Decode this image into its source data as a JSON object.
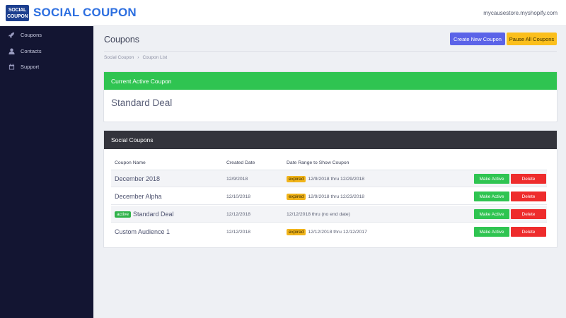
{
  "app": {
    "logo_line1": "SOCIAL",
    "logo_line2": "COUPON",
    "brand": "SOCIAL COUPON",
    "store": "mycausestore.myshopify.com"
  },
  "sidebar": {
    "items": [
      {
        "label": "Coupons",
        "icon": "rocket-icon"
      },
      {
        "label": "Contacts",
        "icon": "user-icon"
      },
      {
        "label": "Support",
        "icon": "calendar-icon"
      }
    ]
  },
  "page": {
    "title": "Coupons",
    "create_label": "Create New Coupon",
    "pause_label": "Pause All Coupons",
    "breadcrumb": [
      "Social Coupon",
      "Coupon List"
    ]
  },
  "active_card": {
    "header": "Current Active Coupon",
    "deal": "Standard Deal"
  },
  "list_card": {
    "header": "Social Coupons",
    "columns": [
      "Coupon Name",
      "Created Date",
      "Date Range to Show Coupon"
    ],
    "rows": [
      {
        "name": "December 2018",
        "badge": "",
        "created": "12/9/2018",
        "status": "expired",
        "range": "12/9/2018 thru 12/29/2018"
      },
      {
        "name": "December Alpha",
        "badge": "",
        "created": "12/10/2018",
        "status": "expired",
        "range": "12/9/2018 thru 12/23/2018"
      },
      {
        "name": "Standard Deal",
        "badge": "active",
        "created": "12/12/2018",
        "status": "",
        "range": "12/12/2018 thru (no end date)"
      },
      {
        "name": "Custom Audience 1",
        "badge": "",
        "created": "12/12/2018",
        "status": "expired",
        "range": "12/12/2018 thru 12/12/2017"
      }
    ],
    "make_active_label": "Make Active",
    "delete_label": "Delete"
  },
  "colors": {
    "brand": "#2d6fe0",
    "sidebar": "#131532",
    "success": "#2fc451",
    "danger": "#ee2c2c",
    "warning": "#fbbf1c",
    "primary": "#5b63e8"
  }
}
